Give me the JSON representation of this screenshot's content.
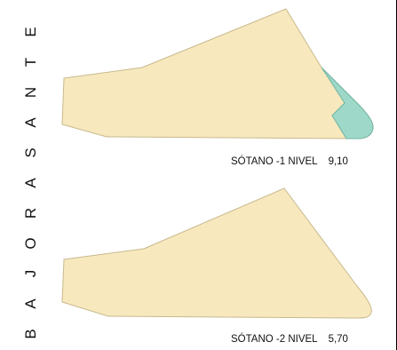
{
  "side_title": [
    "B",
    "A",
    "J",
    "O",
    "R",
    "A",
    "S",
    "A",
    "N",
    "T",
    "E"
  ],
  "floors": [
    {
      "label": "SÓTANO -1 NIVEL",
      "value": "9,10"
    },
    {
      "label": "SÓTANO -2 NIVEL",
      "value": "5,70"
    }
  ],
  "colors": {
    "floor_fill": "#f7e8bd",
    "floor_stroke": "#c8b98e",
    "accent_fill": "#9ed8c8",
    "accent_stroke": "#6fb3a1"
  }
}
